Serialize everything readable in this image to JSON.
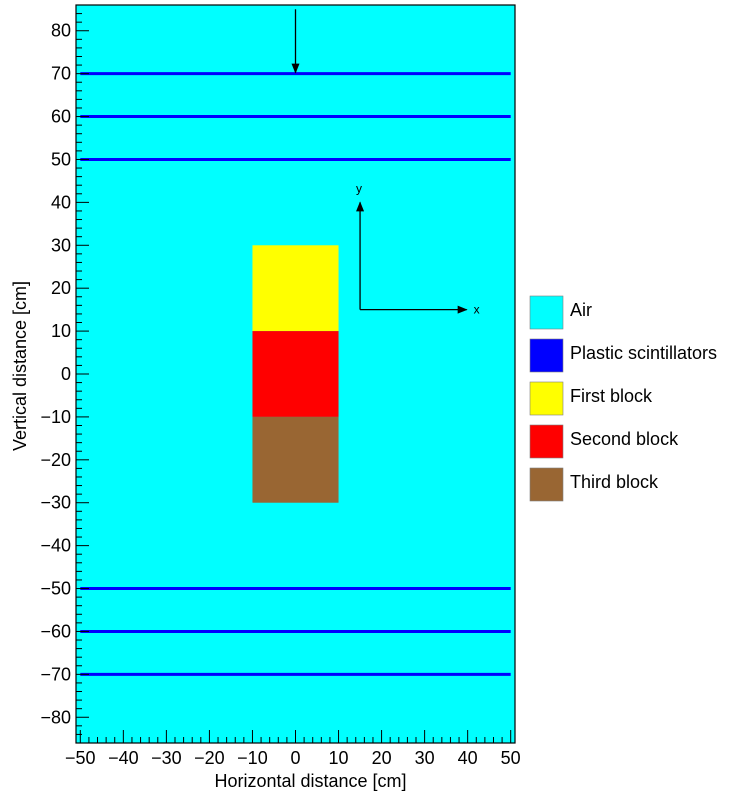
{
  "chart_data": {
    "type": "diagram",
    "xlabel": "Horizontal distance [cm]",
    "ylabel": "Vertical distance [cm]",
    "xlim": [
      -51,
      51
    ],
    "ylim": [
      -86,
      86
    ],
    "x_ticks": [
      -50,
      -40,
      -30,
      -20,
      -10,
      0,
      10,
      20,
      30,
      40,
      50
    ],
    "x_tick_labels": [
      "−50",
      "−40",
      "−30",
      "−20",
      "−10",
      "0",
      "10",
      "20",
      "30",
      "40",
      "50"
    ],
    "y_ticks": [
      80,
      70,
      60,
      50,
      40,
      30,
      20,
      10,
      0,
      -10,
      -20,
      -30,
      -40,
      -50,
      -60,
      -70,
      -80
    ],
    "y_tick_labels": [
      "80",
      "70",
      "60",
      "50",
      "40",
      "30",
      "20",
      "10",
      "0",
      "−10",
      "−20",
      "−30",
      "−40",
      "−50",
      "−60",
      "−70",
      "−80"
    ],
    "background": {
      "material": "Air",
      "color": "#00ffff"
    },
    "scintillators": {
      "color": "#0000ff",
      "x_range": [
        -50,
        50
      ],
      "y_positions": [
        70,
        60,
        50,
        -50,
        -60,
        -70
      ]
    },
    "blocks": [
      {
        "name": "First block",
        "color": "#ffff00",
        "x": [
          -10,
          10
        ],
        "y": [
          10,
          30
        ]
      },
      {
        "name": "Second block",
        "color": "#ff0000",
        "x": [
          -10,
          10
        ],
        "y": [
          -10,
          10
        ]
      },
      {
        "name": "Third block",
        "color": "#996633",
        "x": [
          -10,
          10
        ],
        "y": [
          -30,
          -10
        ]
      }
    ],
    "beam_arrow": {
      "x": 0,
      "y_from": 85,
      "y_to": 70
    },
    "coordinate_axes": {
      "origin": [
        15,
        15
      ],
      "y_end": 40,
      "x_end": 40,
      "x_label": "x",
      "y_label": "y"
    },
    "legend": {
      "position": "right",
      "entries": [
        {
          "label": "Air",
          "color": "#00ffff"
        },
        {
          "label": "Plastic scintillators",
          "color": "#0000ff"
        },
        {
          "label": "First block",
          "color": "#ffff00"
        },
        {
          "label": "Second block",
          "color": "#ff0000"
        },
        {
          "label": "Third block",
          "color": "#996633"
        }
      ]
    }
  }
}
